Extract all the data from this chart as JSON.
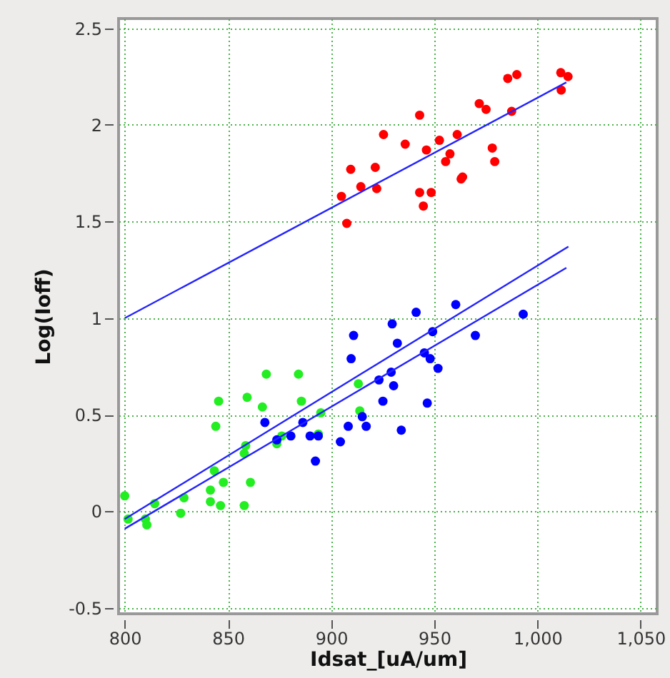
{
  "chart_data": {
    "type": "scatter",
    "xlabel": "Idsat_[uA/um]",
    "ylabel": "Log(Ioff)",
    "xlim": [
      797,
      1058
    ],
    "ylim": [
      -0.53,
      2.55
    ],
    "xticks": [
      800,
      850,
      900,
      {
        "value": 950,
        "label": "950"
      },
      {
        "value": 1000,
        "label": "1,000"
      },
      {
        "value": 1050,
        "label": "1,050"
      }
    ],
    "yticks": [
      -0.5,
      0,
      0.5,
      1,
      1.5,
      2,
      2.5
    ],
    "grid": true,
    "series": [
      {
        "marker": "circle",
        "color": "#ff0000",
        "x": [
          1011.3,
          1014.8,
          1011.5,
          985.6,
          990.0,
          971.8,
          975.1,
          987.5,
          942.9,
          925.4,
          961.1,
          935.9,
          952.5,
          946.2,
          978.1,
          979.3,
          957.6,
          955.5,
          909.5,
          921.4,
          914.4,
          922.1,
          905.0,
          963.7,
          963.0,
          942.9,
          948.5,
          944.7,
          907.6
        ],
        "values": [
          2.27,
          2.25,
          2.18,
          2.24,
          2.26,
          2.11,
          2.08,
          2.07,
          2.05,
          1.95,
          1.95,
          1.9,
          1.92,
          1.87,
          1.88,
          1.81,
          1.85,
          1.81,
          1.77,
          1.78,
          1.68,
          1.67,
          1.63,
          1.73,
          1.72,
          1.65,
          1.65,
          1.58,
          1.49
        ]
      },
      {
        "marker": "circle",
        "color": "#22ee22",
        "x": [
          800,
          801.6,
          810,
          810.7,
          814.5,
          827.1,
          828.7,
          841.5,
          841.5,
          846.4,
          847.8,
          843.4,
          844.1,
          845.5,
          857.9,
          860.9,
          857.9,
          858.6,
          859.3,
          868.6,
          866.7,
          884.2,
          885.6,
          876.1,
          873.7,
          895.0,
          893.8,
          913.2,
          913.9
        ],
        "values": [
          0.08,
          -0.04,
          -0.04,
          -0.07,
          0.04,
          -0.01,
          0.07,
          0.11,
          0.05,
          0.03,
          0.15,
          0.21,
          0.44,
          0.57,
          0.03,
          0.15,
          0.3,
          0.34,
          0.59,
          0.71,
          0.54,
          0.71,
          0.57,
          0.39,
          0.35,
          0.51,
          0.4,
          0.66,
          0.52
        ]
      },
      {
        "marker": "circle",
        "color": "#0000ff",
        "x": [
          867.9,
          873.7,
          880.5,
          889.8,
          893.8,
          892.4,
          886.3,
          904.5,
          908.3,
          915.1,
          917.0,
          934.0,
          925.1,
          946.6,
          930.3,
          923.2,
          929.1,
          909.7,
          910.9,
          932.1,
          929.6,
          941.2,
          960.4,
          949.2,
          945.2,
          948.0,
          951.8,
          969.9,
          993.1
        ],
        "values": [
          0.46,
          0.37,
          0.39,
          0.39,
          0.39,
          0.26,
          0.46,
          0.36,
          0.44,
          0.49,
          0.44,
          0.42,
          0.57,
          0.56,
          0.65,
          0.68,
          0.72,
          0.79,
          0.91,
          0.87,
          0.97,
          1.03,
          1.07,
          0.93,
          0.82,
          0.79,
          0.74,
          0.91,
          1.02
        ]
      },
      {
        "type": "line",
        "color": "#2222ff",
        "x": [
          800,
          1014
        ],
        "values": [
          1.0,
          2.22
        ]
      },
      {
        "type": "line",
        "color": "#2222ff",
        "x": [
          800,
          1015
        ],
        "values": [
          -0.04,
          1.37
        ]
      },
      {
        "type": "line",
        "color": "#2222ff",
        "x": [
          800,
          1014
        ],
        "values": [
          -0.09,
          1.26
        ]
      }
    ]
  }
}
